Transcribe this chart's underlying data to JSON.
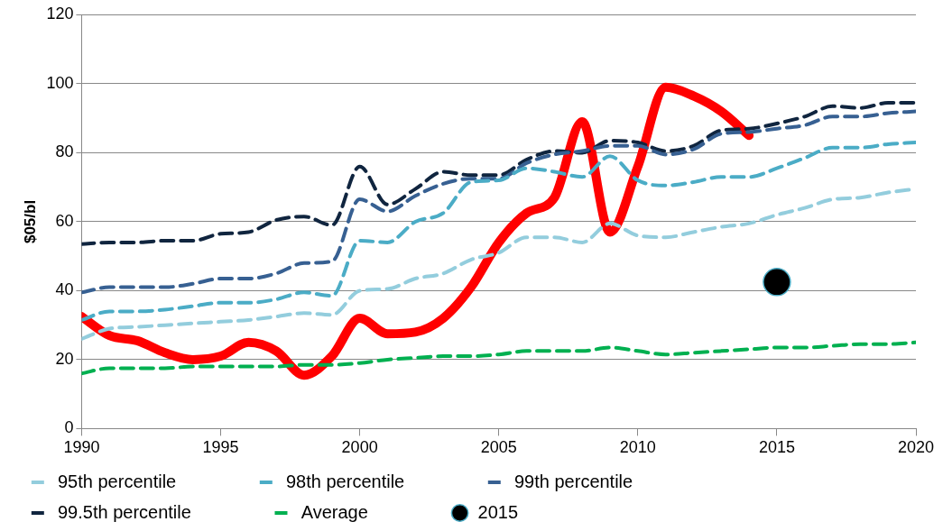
{
  "chart_data": {
    "type": "line",
    "ylabel": "$05/bl",
    "x": [
      1990,
      1991,
      1992,
      1993,
      1994,
      1995,
      1996,
      1997,
      1998,
      1999,
      2000,
      2001,
      2002,
      2003,
      2004,
      2005,
      2006,
      2007,
      2008,
      2009,
      2010,
      2011,
      2012,
      2013,
      2014,
      2015,
      2016,
      2017,
      2018,
      2019,
      2020
    ],
    "xlim": [
      1990,
      2020
    ],
    "xticks": [
      1990,
      1995,
      2000,
      2005,
      2010,
      2015,
      2020
    ],
    "ylim": [
      0,
      120
    ],
    "yticks": [
      0,
      20,
      40,
      60,
      80,
      100,
      120
    ],
    "grid": "y",
    "legend": "bottom",
    "marker": "none",
    "series": [
      {
        "name": "95th percentile",
        "color": "#93cddd",
        "line_style": "dashed",
        "values": [
          26,
          29,
          29.5,
          30,
          30.5,
          31,
          31.5,
          32.5,
          33.5,
          33,
          40,
          40.5,
          43.5,
          45,
          49,
          51,
          55.5,
          55.5,
          54,
          59.5,
          56,
          55.5,
          57,
          58.5,
          59.5,
          62,
          64,
          66.5,
          67,
          68.5,
          69.5
        ]
      },
      {
        "name": "98th percentile",
        "color": "#4bacc6",
        "line_style": "dashed",
        "values": [
          31.5,
          34,
          34,
          34.5,
          35.5,
          36.5,
          36.5,
          37.5,
          39.5,
          38.5,
          54.5,
          54,
          60,
          62.5,
          71.5,
          72,
          75.5,
          74.5,
          73,
          79,
          72,
          70.5,
          71.5,
          73,
          73,
          75.5,
          78.5,
          81.5,
          81.5,
          82.5,
          83
        ]
      },
      {
        "name": "99th percentile",
        "color": "#376092",
        "line_style": "dashed",
        "values": [
          39.5,
          41,
          41,
          41,
          42,
          43.5,
          43.5,
          45,
          48,
          48.5,
          66.5,
          63,
          67.5,
          71,
          72.5,
          72.5,
          77,
          79.5,
          80.5,
          82,
          82,
          79.5,
          81,
          85.5,
          86,
          87,
          88,
          90.5,
          90.5,
          91.5,
          92
        ]
      },
      {
        "name": "99.5th percentile",
        "color": "#10253f",
        "line_style": "dashed",
        "values": [
          53.5,
          54,
          54,
          54.5,
          54.5,
          56.5,
          57,
          60.5,
          61.5,
          59,
          76,
          65,
          69.5,
          74.5,
          73.5,
          73.5,
          78,
          80.5,
          80,
          83.5,
          83,
          80.5,
          82,
          86.5,
          87,
          88.5,
          90.5,
          93.5,
          93,
          94.5,
          94.5
        ]
      },
      {
        "name": "Average",
        "color": "#00b050",
        "line_style": "dashed",
        "values": [
          16,
          17.5,
          17.5,
          17.5,
          18,
          18,
          18,
          18,
          18.5,
          18.5,
          19,
          20,
          20.5,
          21,
          21,
          21.5,
          22.5,
          22.5,
          22.5,
          23.5,
          22.5,
          21.5,
          22,
          22.5,
          23,
          23.5,
          23.5,
          24,
          24.5,
          24.5,
          25
        ]
      },
      {
        "name": "2015",
        "type": "scatter",
        "marker": "circle",
        "color": "#000000",
        "x": [
          2015
        ],
        "values": [
          42.5
        ]
      },
      {
        "color": "#ff0000",
        "line_style": "solid",
        "x": [
          1990,
          1991,
          1992,
          1993,
          1994,
          1995,
          1996,
          1997,
          1998,
          1999,
          2000,
          2001,
          2002,
          2003,
          2004,
          2005,
          2006,
          2007,
          2008,
          2009,
          2010,
          2011,
          2012,
          2013,
          2014
        ],
        "values": [
          32.5,
          27,
          25.5,
          22,
          20,
          21,
          25,
          22.5,
          15.5,
          21,
          32,
          27.5,
          28,
          32,
          41,
          54,
          62.5,
          67,
          89,
          57,
          76,
          99,
          96.5,
          92,
          85
        ]
      }
    ]
  }
}
